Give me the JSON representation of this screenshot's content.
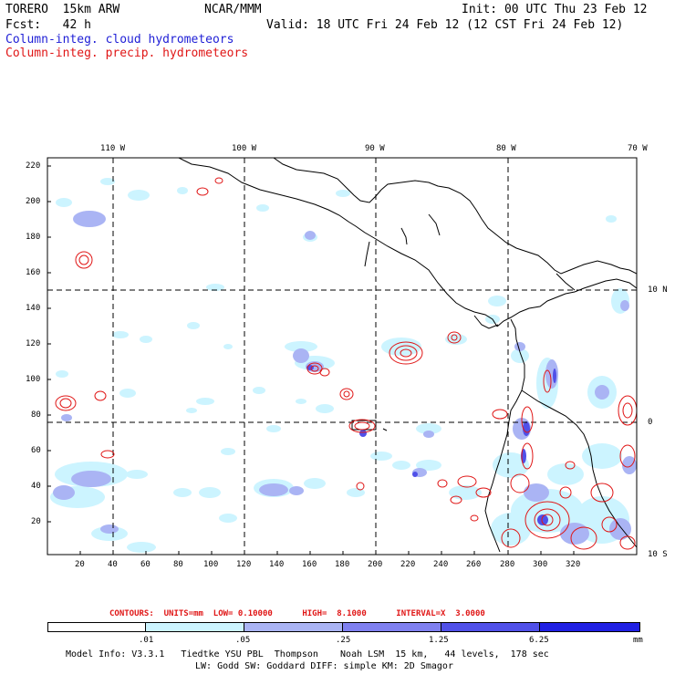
{
  "header": {
    "model": "TORERO  15km ARW",
    "org": "NCAR/MMM",
    "init": "Init: 00 UTC Thu 23 Feb 12",
    "fcst": "Fcst:   42 h",
    "valid": "Valid: 18 UTC Fri 24 Feb 12 (12 CST Fri 24 Feb 12)",
    "legend_cloud": "Column-integ. cloud hydrometeors",
    "legend_precip": "Column-integ. precip. hydrometeors"
  },
  "colors": {
    "cloud_text": "#1f1fd6",
    "precip_text": "#e01616",
    "shade_1": "#ccf4ff",
    "shade_2": "#aab4f4",
    "shade_3": "#7f80f0",
    "shade_4": "#5050e8",
    "shade_5": "#2020e4",
    "contour": "#e01616"
  },
  "map": {
    "top_lon_labels": [
      "110 W",
      "100 W",
      "90 W",
      "80 W",
      "70 W"
    ],
    "right_lat_labels": [
      "10 N",
      "0",
      "10 S"
    ],
    "y_ticks": [
      "220",
      "200",
      "180",
      "160",
      "140",
      "120",
      "100",
      "80",
      "60",
      "40",
      "20"
    ],
    "x_ticks": [
      "20",
      "40",
      "60",
      "80",
      "100",
      "120",
      "140",
      "160",
      "180",
      "200",
      "220",
      "240",
      "260",
      "280",
      "300",
      "320"
    ]
  },
  "contour_info": "CONTOURS:  UNITS=mm  LOW= 0.10000      HIGH=  8.1000      INTERVAL=X  3.0000",
  "colorbar": {
    "levels": [
      ".01",
      ".05",
      ".25",
      "1.25",
      "6.25"
    ],
    "units": "mm"
  },
  "footer": {
    "line1": "Model Info: V3.3.1   Tiedtke YSU PBL  Thompson    Noah LSM  15 km,   44 levels,  178 sec",
    "line2": "LW: Godd SW: Goddard DIFF: simple KM: 2D Smagor"
  }
}
